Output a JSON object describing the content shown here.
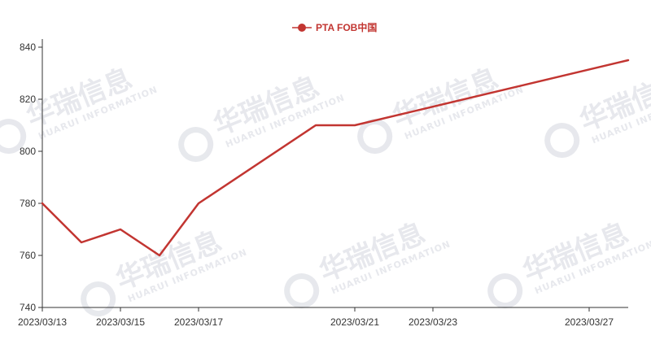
{
  "watermark": {
    "main": "华瑞信息",
    "sub": "HUARUI INFORMATION"
  },
  "chart_data": {
    "type": "line",
    "title": "",
    "xlabel": "",
    "ylabel": "",
    "ylim": [
      740,
      840
    ],
    "yticks": [
      740,
      760,
      780,
      800,
      820,
      840
    ],
    "x_range": [
      "2023/03/13",
      "2023/03/28"
    ],
    "xticks": [
      "2023/03/13",
      "2023/03/15",
      "2023/03/17",
      "2023/03/21",
      "2023/03/23",
      "2023/03/27"
    ],
    "legend_position": "top-center",
    "grid": false,
    "series": [
      {
        "name": "PTA FOB中国",
        "color": "#c23531",
        "points": [
          {
            "x": "2023/03/13",
            "y": 780
          },
          {
            "x": "2023/03/14",
            "y": 765
          },
          {
            "x": "2023/03/15",
            "y": 770
          },
          {
            "x": "2023/03/16",
            "y": 760
          },
          {
            "x": "2023/03/17",
            "y": 780
          },
          {
            "x": "2023/03/20",
            "y": 810
          },
          {
            "x": "2023/03/21",
            "y": 810
          },
          {
            "x": "2023/03/28",
            "y": 835
          }
        ]
      }
    ]
  }
}
